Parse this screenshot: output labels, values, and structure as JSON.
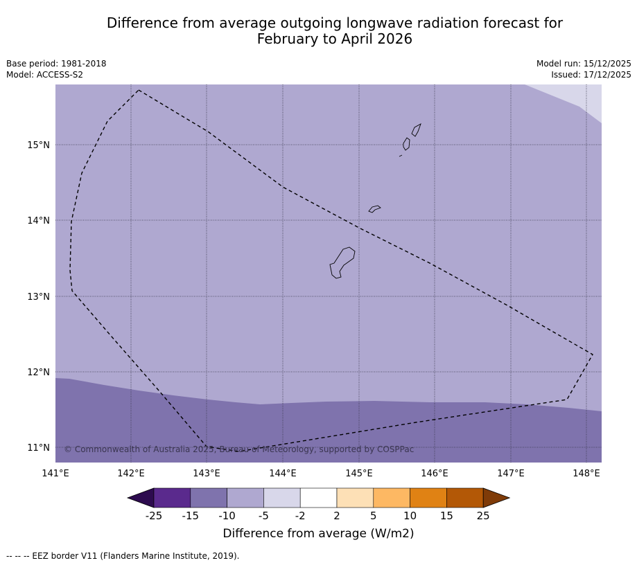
{
  "title_line1": "Difference from average outgoing longwave radiation forecast for",
  "title_line2": "February to April 2026",
  "meta": {
    "base_period": "Base period: 1981-2018",
    "model": "Model: ACCESS-S2",
    "model_run": "Model run: 15/12/2025",
    "issued": "Issued: 17/12/2025"
  },
  "map": {
    "lat_labels": [
      "15°N",
      "14°N",
      "13°N",
      "12°N",
      "11°N"
    ],
    "lon_labels": [
      "141°E",
      "142°E",
      "143°E",
      "144°E",
      "145°E",
      "146°E",
      "147°E",
      "148°E"
    ],
    "copyright": "© Commonwealth of Australia 2025, Bureau of Meteorology, supported by COSPPac",
    "colors": {
      "band_m10_m5": "#afa8d0",
      "band_m15_m10": "#7f73ad",
      "band_m5_m2": "#d8d7ea"
    }
  },
  "colorbar": {
    "ticks": [
      "-25",
      "-15",
      "-10",
      "-5",
      "-2",
      "2",
      "5",
      "10",
      "15",
      "25"
    ],
    "colors": [
      "#2d0b4f",
      "#5a2a8d",
      "#7f73ad",
      "#afa8d0",
      "#d8d7ea",
      "#ffffff",
      "#fde0b6",
      "#fdb863",
      "#e08214",
      "#b35806",
      "#7f3b08"
    ],
    "label": "Difference from average (W/m2)"
  },
  "footer": "--  --  -- EEZ border V11 (Flanders Marine Institute, 2019)."
}
